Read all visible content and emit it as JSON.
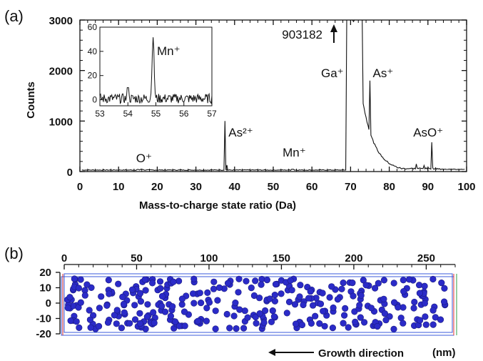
{
  "chart_data": [
    {
      "panel": "(a)",
      "type": "line",
      "xlabel": "Mass-to-charge state ratio (Da)",
      "ylabel": "Counts",
      "xlim": [
        0,
        100
      ],
      "ylim": [
        0,
        3000
      ],
      "xticks": [
        "0",
        "10",
        "20",
        "30",
        "40",
        "50",
        "60",
        "70",
        "80",
        "90",
        "100"
      ],
      "yticks": [
        "0",
        "1000",
        "2000",
        "3000"
      ],
      "background": 30,
      "peaks": [
        {
          "label": "O⁺",
          "x": 16,
          "y": 40
        },
        {
          "label": "As²⁺",
          "x": 37.5,
          "y": 1000
        },
        {
          "label": "Mn⁺",
          "x": 55,
          "y": 45
        },
        {
          "label": "Ga⁺",
          "x": 69,
          "y": 3000
        },
        {
          "label": "As⁺",
          "x": 75,
          "y": 1800
        },
        {
          "label": "AsO⁺",
          "x": 91,
          "y": 580
        }
      ],
      "offscale_annotation": "903182",
      "inset": {
        "type": "line",
        "xlim": [
          53,
          57
        ],
        "ylim": [
          -5,
          60
        ],
        "xticks": [
          "53",
          "54",
          "55",
          "56",
          "57"
        ],
        "yticks": [
          "0",
          "20",
          "40",
          "60"
        ],
        "peak_label": "Mn⁺",
        "peak": {
          "x": 54.9,
          "y": 52
        }
      }
    },
    {
      "panel": "(b)",
      "type": "scatter",
      "xlim": [
        0,
        270
      ],
      "ylim": [
        -20,
        20
      ],
      "xticks": [
        "0",
        "50",
        "100",
        "150",
        "200",
        "250"
      ],
      "yticks": [
        "20",
        "10",
        "0",
        "-10",
        "-20"
      ],
      "point_color": "#2b2bc8",
      "box_color": "#3b5bdb",
      "unit": "(nm)",
      "annotation": "Growth direction"
    }
  ]
}
